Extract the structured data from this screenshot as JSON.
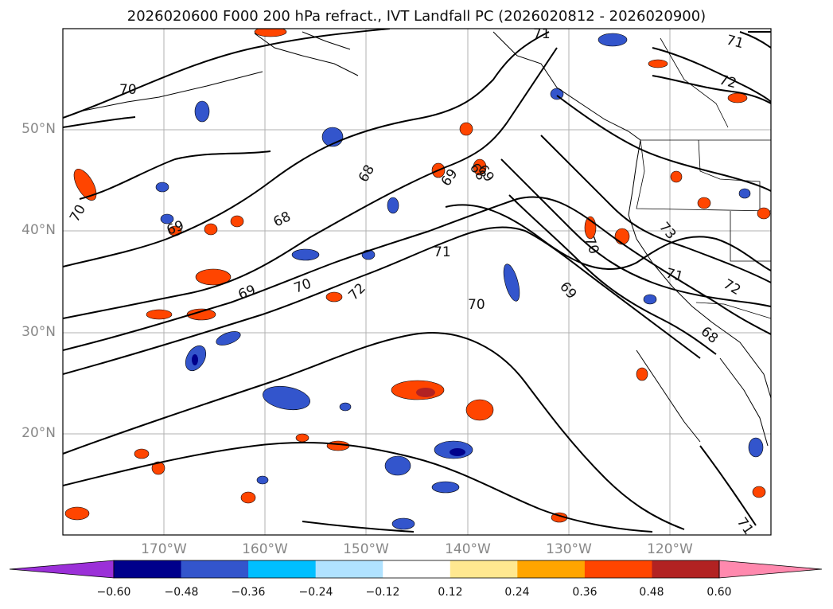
{
  "title": "2026020600 F000 200 hPa refract., IVT Landfall PC (2026020812 - 2026020900)",
  "map": {
    "lat_labels": [
      "50°N",
      "40°N",
      "30°N",
      "20°N"
    ],
    "lon_labels": [
      "170°W",
      "160°W",
      "150°W",
      "140°W",
      "130°W",
      "120°W"
    ],
    "contour_labels": [
      "70",
      "70",
      "70",
      "70",
      "69",
      "69",
      "69",
      "69",
      "68",
      "68",
      "68",
      "71",
      "71",
      "71",
      "71",
      "72",
      "72",
      "72",
      "73",
      "70",
      "69",
      "68",
      "71"
    ]
  },
  "colorbar": {
    "ticks": [
      "−0.60",
      "−0.48",
      "−0.36",
      "−0.24",
      "−0.12",
      "0.12",
      "0.24",
      "0.36",
      "0.48",
      "0.60"
    ],
    "colors": [
      "#9b30d8",
      "#00008b",
      "#3355cc",
      "#00bfff",
      "#b0e2ff",
      "#ffffff",
      "#ffe890",
      "#ffa500",
      "#ff4500",
      "#b22222",
      "#ff89ae"
    ]
  }
}
